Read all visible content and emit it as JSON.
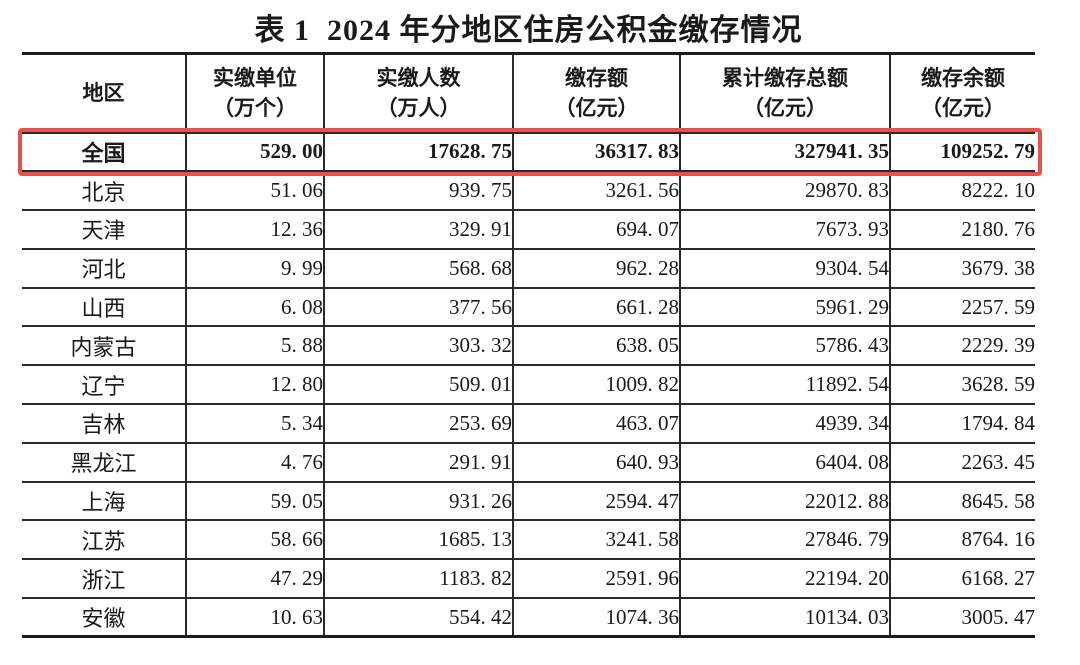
{
  "title": "表 1  2024 年分地区住房公积金缴存情况",
  "highlight_color": "#e8504e",
  "table": {
    "columns": [
      {
        "label": "地区",
        "unit": ""
      },
      {
        "label": "实缴单位",
        "unit": "（万个）"
      },
      {
        "label": "实缴人数",
        "unit": "（万人）"
      },
      {
        "label": "缴存额",
        "unit": "（亿元）"
      },
      {
        "label": "累计缴存总额",
        "unit": "（亿元）"
      },
      {
        "label": "缴存余额",
        "unit": "（亿元）"
      }
    ],
    "rows": [
      {
        "region": "全国",
        "values": [
          "529. 00",
          "17628. 75",
          "36317. 83",
          "327941. 35",
          "109252. 79"
        ],
        "bold": true,
        "highlighted": true
      },
      {
        "region": "北京",
        "values": [
          "51. 06",
          "939. 75",
          "3261. 56",
          "29870. 83",
          "8222. 10"
        ],
        "bold": false,
        "highlighted": false
      },
      {
        "region": "天津",
        "values": [
          "12. 36",
          "329. 91",
          "694. 07",
          "7673. 93",
          "2180. 76"
        ],
        "bold": false,
        "highlighted": false
      },
      {
        "region": "河北",
        "values": [
          "9. 99",
          "568. 68",
          "962. 28",
          "9304. 54",
          "3679. 38"
        ],
        "bold": false,
        "highlighted": false
      },
      {
        "region": "山西",
        "values": [
          "6. 08",
          "377. 56",
          "661. 28",
          "5961. 29",
          "2257. 59"
        ],
        "bold": false,
        "highlighted": false
      },
      {
        "region": "内蒙古",
        "values": [
          "5. 88",
          "303. 32",
          "638. 05",
          "5786. 43",
          "2229. 39"
        ],
        "bold": false,
        "highlighted": false
      },
      {
        "region": "辽宁",
        "values": [
          "12. 80",
          "509. 01",
          "1009. 82",
          "11892. 54",
          "3628. 59"
        ],
        "bold": false,
        "highlighted": false
      },
      {
        "region": "吉林",
        "values": [
          "5. 34",
          "253. 69",
          "463. 07",
          "4939. 34",
          "1794. 84"
        ],
        "bold": false,
        "highlighted": false
      },
      {
        "region": "黑龙江",
        "values": [
          "4. 76",
          "291. 91",
          "640. 93",
          "6404. 08",
          "2263. 45"
        ],
        "bold": false,
        "highlighted": false
      },
      {
        "region": "上海",
        "values": [
          "59. 05",
          "931. 26",
          "2594. 47",
          "22012. 88",
          "8645. 58"
        ],
        "bold": false,
        "highlighted": false
      },
      {
        "region": "江苏",
        "values": [
          "58. 66",
          "1685. 13",
          "3241. 58",
          "27846. 79",
          "8764. 16"
        ],
        "bold": false,
        "highlighted": false
      },
      {
        "region": "浙江",
        "values": [
          "47. 29",
          "1183. 82",
          "2591. 96",
          "22194. 20",
          "6168. 27"
        ],
        "bold": false,
        "highlighted": false
      },
      {
        "region": "安徽",
        "values": [
          "10. 63",
          "554. 42",
          "1074. 36",
          "10134. 03",
          "3005. 47"
        ],
        "bold": false,
        "highlighted": false
      }
    ]
  },
  "chart_data": {
    "type": "table",
    "title": "表 1  2024 年分地区住房公积金缴存情况",
    "columns": [
      "地区",
      "实缴单位（万个）",
      "实缴人数（万人）",
      "缴存额（亿元）",
      "累计缴存总额（亿元）",
      "缴存余额（亿元）"
    ],
    "rows": [
      [
        "全国",
        529.0,
        17628.75,
        36317.83,
        327941.35,
        109252.79
      ],
      [
        "北京",
        51.06,
        939.75,
        3261.56,
        29870.83,
        8222.1
      ],
      [
        "天津",
        12.36,
        329.91,
        694.07,
        7673.93,
        2180.76
      ],
      [
        "河北",
        9.99,
        568.68,
        962.28,
        9304.54,
        3679.38
      ],
      [
        "山西",
        6.08,
        377.56,
        661.28,
        5961.29,
        2257.59
      ],
      [
        "内蒙古",
        5.88,
        303.32,
        638.05,
        5786.43,
        2229.39
      ],
      [
        "辽宁",
        12.8,
        509.01,
        1009.82,
        11892.54,
        3628.59
      ],
      [
        "吉林",
        5.34,
        253.69,
        463.07,
        4939.34,
        1794.84
      ],
      [
        "黑龙江",
        4.76,
        291.91,
        640.93,
        6404.08,
        2263.45
      ],
      [
        "上海",
        59.05,
        931.26,
        2594.47,
        22012.88,
        8645.58
      ],
      [
        "江苏",
        58.66,
        1685.13,
        3241.58,
        27846.79,
        8764.16
      ],
      [
        "浙江",
        47.29,
        1183.82,
        2591.96,
        22194.2,
        6168.27
      ],
      [
        "安徽",
        10.63,
        554.42,
        1074.36,
        10134.03,
        3005.47
      ]
    ]
  }
}
